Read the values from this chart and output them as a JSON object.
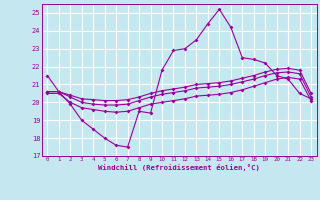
{
  "xlabel": "Windchill (Refroidissement éolien,°C)",
  "bg_color": "#c5e8f0",
  "line_color": "#990099",
  "grid_color": "#ffffff",
  "ylim": [
    17,
    25.5
  ],
  "xlim": [
    -0.5,
    23.5
  ],
  "yticks": [
    17,
    18,
    19,
    20,
    21,
    22,
    23,
    24,
    25
  ],
  "xticks": [
    0,
    1,
    2,
    3,
    4,
    5,
    6,
    7,
    8,
    9,
    10,
    11,
    12,
    13,
    14,
    15,
    16,
    17,
    18,
    19,
    20,
    21,
    22,
    23
  ],
  "line1_x": [
    0,
    1,
    2,
    3,
    4,
    5,
    6,
    7,
    8,
    9,
    10,
    11,
    12,
    13,
    14,
    15,
    16,
    17,
    18,
    19,
    20,
    21,
    22,
    23
  ],
  "line1_y": [
    21.5,
    20.6,
    19.9,
    19.0,
    18.5,
    18.0,
    17.6,
    17.5,
    19.5,
    19.4,
    21.8,
    22.9,
    23.0,
    23.5,
    24.4,
    25.2,
    24.2,
    22.5,
    22.4,
    22.2,
    21.5,
    21.3,
    20.5,
    20.2
  ],
  "line2_x": [
    0,
    1,
    2,
    3,
    4,
    5,
    6,
    7,
    8,
    9,
    10,
    11,
    12,
    13,
    14,
    15,
    16,
    17,
    18,
    19,
    20,
    21,
    22,
    23
  ],
  "line2_y": [
    20.6,
    20.6,
    20.4,
    20.2,
    20.15,
    20.1,
    20.1,
    20.15,
    20.3,
    20.5,
    20.65,
    20.75,
    20.85,
    21.0,
    21.05,
    21.1,
    21.2,
    21.35,
    21.5,
    21.7,
    21.85,
    21.9,
    21.8,
    20.5
  ],
  "line3_x": [
    0,
    1,
    2,
    3,
    4,
    5,
    6,
    7,
    8,
    9,
    10,
    11,
    12,
    13,
    14,
    15,
    16,
    17,
    18,
    19,
    20,
    21,
    22,
    23
  ],
  "line3_y": [
    20.6,
    20.6,
    20.3,
    20.0,
    19.9,
    19.85,
    19.85,
    19.9,
    20.1,
    20.3,
    20.45,
    20.55,
    20.65,
    20.8,
    20.85,
    20.9,
    21.0,
    21.15,
    21.3,
    21.5,
    21.65,
    21.7,
    21.6,
    20.3
  ],
  "line4_x": [
    0,
    1,
    2,
    3,
    4,
    5,
    6,
    7,
    8,
    9,
    10,
    11,
    12,
    13,
    14,
    15,
    16,
    17,
    18,
    19,
    20,
    21,
    22,
    23
  ],
  "line4_y": [
    20.5,
    20.5,
    20.0,
    19.7,
    19.6,
    19.5,
    19.45,
    19.5,
    19.7,
    19.9,
    20.0,
    20.1,
    20.2,
    20.35,
    20.4,
    20.45,
    20.55,
    20.7,
    20.9,
    21.1,
    21.3,
    21.4,
    21.3,
    20.1
  ]
}
